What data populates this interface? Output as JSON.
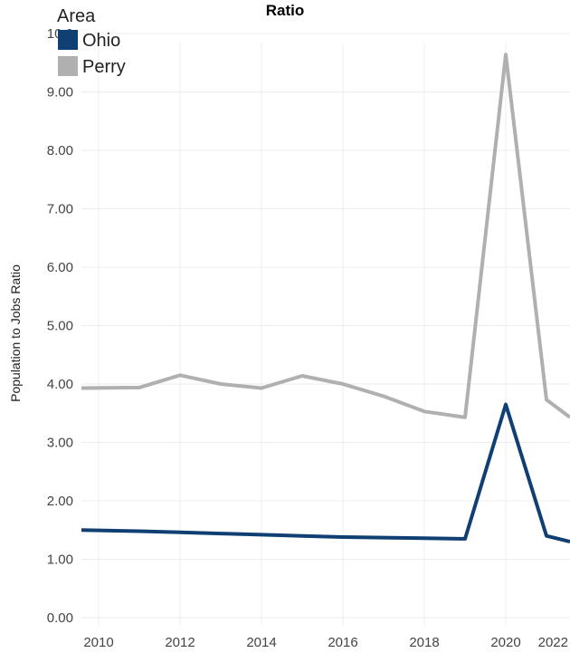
{
  "chart_data": {
    "type": "line",
    "title": "Ratio",
    "ylabel": "Population to Jobs Ratio",
    "xlabel": "",
    "x": [
      2010,
      2011,
      2012,
      2013,
      2014,
      2015,
      2016,
      2017,
      2018,
      2019,
      2020,
      2021,
      2022
    ],
    "x_ticks": [
      2010,
      2012,
      2014,
      2016,
      2018,
      2020,
      2022
    ],
    "x_tick_labels": [
      "2010",
      "2012",
      "2014",
      "2016",
      "2018",
      "2020",
      "2022"
    ],
    "y_ticks": [
      0,
      1,
      2,
      3,
      4,
      5,
      6,
      7,
      8,
      9,
      10
    ],
    "y_tick_labels": [
      "0.00",
      "1.00",
      "2.00",
      "3.00",
      "4.00",
      "5.00",
      "6.00",
      "7.00",
      "8.00",
      "9.00",
      "10.0"
    ],
    "ylim": [
      0,
      10
    ],
    "grid": true,
    "legend": {
      "title": "Area",
      "placement": "top-left",
      "entries": [
        {
          "label": "Ohio",
          "color": "#103f73"
        },
        {
          "label": "Perry",
          "color": "#b0b0b0"
        }
      ]
    },
    "series": [
      {
        "name": "Ohio",
        "color": "#103f73",
        "values": [
          1.5,
          1.48,
          1.46,
          1.44,
          1.42,
          1.4,
          1.38,
          1.37,
          1.36,
          1.35,
          3.65,
          1.4,
          1.3
        ]
      },
      {
        "name": "Perry",
        "color": "#b0b0b0",
        "values": [
          3.93,
          3.94,
          4.15,
          4.0,
          3.93,
          4.14,
          4.0,
          3.79,
          3.53,
          3.43,
          9.64,
          3.73,
          3.43
        ]
      }
    ]
  }
}
